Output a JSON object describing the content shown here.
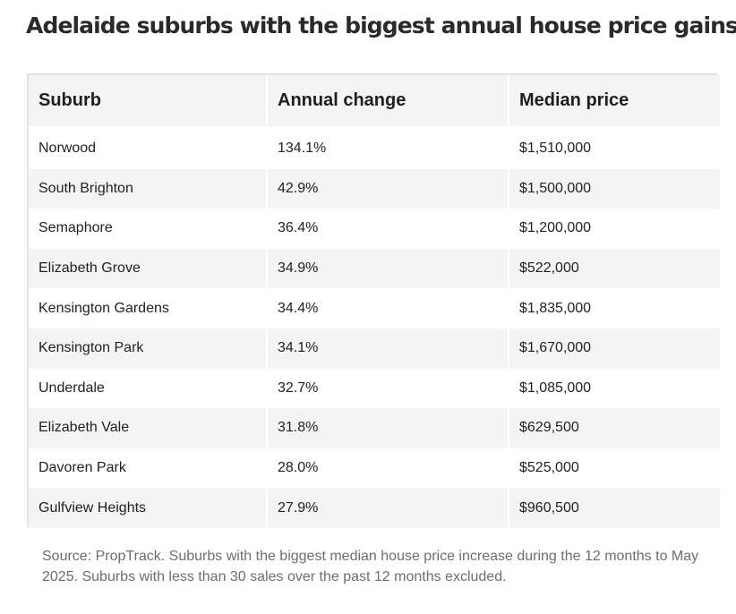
{
  "page": {
    "title": "Adelaide suburbs with the biggest annual house price gains"
  },
  "table": {
    "headers": [
      "Suburb",
      "Annual change",
      "Median price"
    ],
    "rows": [
      [
        "Norwood",
        "134.1%",
        "$1,510,000"
      ],
      [
        "South Brighton",
        "42.9%",
        "$1,500,000"
      ],
      [
        "Semaphore",
        "36.4%",
        "$1,200,000"
      ],
      [
        "Elizabeth Grove",
        "34.9%",
        "$522,000"
      ],
      [
        "Kensington Gardens",
        "34.4%",
        "$1,835,000"
      ],
      [
        "Kensington Park",
        "34.1%",
        "$1,670,000"
      ],
      [
        "Underdale",
        "32.7%",
        "$1,085,000"
      ],
      [
        "Elizabeth Vale",
        "31.8%",
        "$629,500"
      ],
      [
        "Davoren Park",
        "28.0%",
        "$525,000"
      ],
      [
        "Gulfview Heights",
        "27.9%",
        "$960,500"
      ]
    ]
  },
  "footer": {
    "source": "Source: PropTrack. Suburbs with the biggest median house price increase during the 12 months to May 2025. Suburbs with less than 30 sales over the past 12 months excluded."
  }
}
